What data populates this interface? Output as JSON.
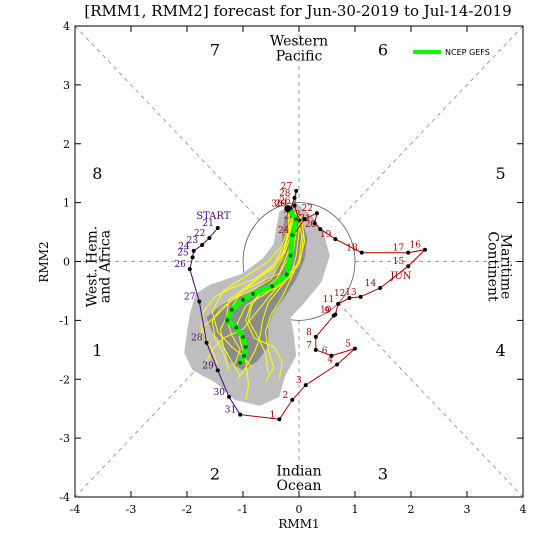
{
  "title": "[RMM1, RMM2] forecast for Jun-30-2019 to Jul-14-2019",
  "colors": {
    "may": "#4b0082",
    "jun": "#aa0000",
    "dots": "#000000",
    "ensemble": "#ffff00",
    "ensemble_outline": "#c8b400",
    "spread_outer": "#bebebe",
    "spread_inner": "#8c8c8c",
    "mean": "#00ff00",
    "mean_dots": "#006400"
  },
  "chart_data": {
    "type": "line",
    "title": "[RMM1, RMM2] forecast for Jun-30-2019 to Jul-14-2019",
    "xlabel": "RMM1",
    "ylabel": "RMM2",
    "xlim": [
      -4,
      4
    ],
    "ylim": [
      -4,
      4
    ],
    "xticks": [
      "-4",
      "-3",
      "-2",
      "-1",
      "0",
      "1",
      "2",
      "3",
      "4"
    ],
    "yticks": [
      "-4",
      "-3",
      "-2",
      "-1",
      "0",
      "1",
      "2",
      "3",
      "4"
    ],
    "grid": false,
    "unit_circle_radius": 1,
    "phases": [
      {
        "label": "1",
        "x": -3.6,
        "y": -1.5
      },
      {
        "label": "2",
        "x": -1.5,
        "y": -3.6
      },
      {
        "label": "3",
        "x": 1.5,
        "y": -3.6
      },
      {
        "label": "4",
        "x": 3.6,
        "y": -1.5
      },
      {
        "label": "5",
        "x": 3.6,
        "y": 1.5
      },
      {
        "label": "6",
        "x": 1.5,
        "y": 3.6
      },
      {
        "label": "7",
        "x": -1.5,
        "y": 3.6
      },
      {
        "label": "8",
        "x": -3.6,
        "y": 1.5
      }
    ],
    "regions": [
      {
        "label": "Western",
        "x": 0,
        "y": 3.75,
        "rotate": 0
      },
      {
        "label": "Pacific",
        "x": 0,
        "y": 3.5,
        "rotate": 0
      },
      {
        "label": "Indian",
        "x": 0,
        "y": -3.55,
        "rotate": 0
      },
      {
        "label": "Ocean",
        "x": 0,
        "y": -3.8,
        "rotate": 0
      },
      {
        "label": "West. Hem.",
        "x": -3.62,
        "y": 0,
        "rotate": -90
      },
      {
        "label": "and Africa",
        "x": -3.38,
        "y": 0,
        "rotate": -90
      },
      {
        "label": "Maritime",
        "x": 3.62,
        "y": 0,
        "rotate": 90
      },
      {
        "label": "Continent",
        "x": 3.38,
        "y": 0,
        "rotate": 90
      }
    ],
    "start_label": {
      "text": "START",
      "x": -1.53,
      "y": 0.72
    },
    "month_labels": [
      {
        "text": "JUN",
        "x": 1.82,
        "y": -0.3
      }
    ],
    "series": [
      {
        "name": "",
        "role": "observed-may",
        "points": [
          {
            "d": "21",
            "x": -1.45,
            "y": 0.57
          },
          {
            "d": "22",
            "x": -1.6,
            "y": 0.4
          },
          {
            "d": "23",
            "x": -1.73,
            "y": 0.28
          },
          {
            "d": "24",
            "x": -1.88,
            "y": 0.18
          },
          {
            "d": "25",
            "x": -1.9,
            "y": 0.07
          },
          {
            "d": "26",
            "x": -1.95,
            "y": -0.13
          },
          {
            "d": "27",
            "x": -1.78,
            "y": -0.68
          },
          {
            "d": "28",
            "x": -1.65,
            "y": -1.38
          },
          {
            "d": "29",
            "x": -1.45,
            "y": -1.85
          },
          {
            "d": "30",
            "x": -1.25,
            "y": -2.3
          },
          {
            "d": "31",
            "x": -1.05,
            "y": -2.6
          }
        ]
      },
      {
        "name": "",
        "role": "observed-jun",
        "points": [
          {
            "d": "1",
            "x": -0.35,
            "y": -2.68
          },
          {
            "d": "2",
            "x": -0.12,
            "y": -2.35
          },
          {
            "d": "3",
            "x": 0.12,
            "y": -2.1
          },
          {
            "d": "4",
            "x": 0.68,
            "y": -1.75
          },
          {
            "d": "5",
            "x": 1.0,
            "y": -1.48
          },
          {
            "d": "6",
            "x": 0.58,
            "y": -1.6
          },
          {
            "d": "7",
            "x": 0.3,
            "y": -1.5
          },
          {
            "d": "8",
            "x": 0.3,
            "y": -1.28
          },
          {
            "d": "9",
            "x": 0.62,
            "y": -0.92
          },
          {
            "d": "10",
            "x": 0.65,
            "y": -0.9
          },
          {
            "d": "11",
            "x": 0.7,
            "y": -0.72
          },
          {
            "d": "12",
            "x": 0.9,
            "y": -0.62
          },
          {
            "d": "13",
            "x": 1.1,
            "y": -0.6
          },
          {
            "d": "14",
            "x": 1.45,
            "y": -0.45
          },
          {
            "d": "15",
            "x": 1.95,
            "y": -0.08
          },
          {
            "d": "16",
            "x": 2.25,
            "y": 0.2
          },
          {
            "d": "17",
            "x": 1.95,
            "y": 0.15
          },
          {
            "d": "18",
            "x": 1.12,
            "y": 0.15
          },
          {
            "d": "19",
            "x": 0.65,
            "y": 0.38
          },
          {
            "d": "20",
            "x": 0.38,
            "y": 0.55
          },
          {
            "d": "21",
            "x": 0.28,
            "y": 0.65
          },
          {
            "d": "22",
            "x": 0.32,
            "y": 0.82
          },
          {
            "d": "23",
            "x": 0.1,
            "y": 0.72
          },
          {
            "d": "24",
            "x": -0.1,
            "y": 0.45
          },
          {
            "d": "25",
            "x": 0.0,
            "y": 0.7
          },
          {
            "d": "26",
            "x": -0.08,
            "y": 0.95
          },
          {
            "d": "27",
            "x": -0.05,
            "y": 1.2
          },
          {
            "d": "28",
            "x": -0.08,
            "y": 1.08
          },
          {
            "d": "29",
            "x": -0.15,
            "y": 0.9
          },
          {
            "d": "30",
            "x": -0.22,
            "y": 0.9
          }
        ]
      },
      {
        "name": "NCEP GEFS",
        "role": "ensemble-mean",
        "points": [
          {
            "x": -0.2,
            "y": 0.9
          },
          {
            "x": -0.05,
            "y": 0.72
          },
          {
            "x": -0.12,
            "y": 0.45
          },
          {
            "x": -0.15,
            "y": 0.1
          },
          {
            "x": -0.22,
            "y": -0.22
          },
          {
            "x": -0.48,
            "y": -0.42
          },
          {
            "x": -0.82,
            "y": -0.55
          },
          {
            "x": -1.0,
            "y": -0.65
          },
          {
            "x": -1.2,
            "y": -0.82
          },
          {
            "x": -1.28,
            "y": -1.0
          },
          {
            "x": -1.12,
            "y": -1.12
          },
          {
            "x": -1.0,
            "y": -1.28
          },
          {
            "x": -0.95,
            "y": -1.45
          },
          {
            "x": -0.98,
            "y": -1.6
          },
          {
            "x": -1.05,
            "y": -1.72
          }
        ]
      }
    ],
    "ensemble_members": [
      [
        [
          -0.2,
          0.9
        ],
        [
          -0.1,
          0.7
        ],
        [
          -0.2,
          0.4
        ],
        [
          -0.3,
          0.05
        ],
        [
          -0.5,
          -0.3
        ],
        [
          -0.85,
          -0.5
        ],
        [
          -1.1,
          -0.6
        ],
        [
          -1.4,
          -0.8
        ],
        [
          -1.55,
          -1.0
        ],
        [
          -1.5,
          -1.3
        ],
        [
          -1.35,
          -1.55
        ],
        [
          -1.25,
          -1.85
        ]
      ],
      [
        [
          -0.2,
          0.9
        ],
        [
          0.0,
          0.75
        ],
        [
          0.0,
          0.5
        ],
        [
          -0.05,
          0.1
        ],
        [
          -0.15,
          -0.25
        ],
        [
          -0.4,
          -0.45
        ],
        [
          -0.7,
          -0.55
        ],
        [
          -0.85,
          -0.75
        ],
        [
          -0.9,
          -1.0
        ],
        [
          -0.75,
          -1.25
        ],
        [
          -0.6,
          -1.55
        ],
        [
          -0.55,
          -1.9
        ]
      ],
      [
        [
          -0.2,
          0.9
        ],
        [
          -0.15,
          0.65
        ],
        [
          -0.25,
          0.3
        ],
        [
          -0.45,
          -0.05
        ],
        [
          -0.8,
          -0.3
        ],
        [
          -1.2,
          -0.45
        ],
        [
          -1.5,
          -0.6
        ],
        [
          -1.7,
          -0.85
        ],
        [
          -1.75,
          -1.1
        ],
        [
          -1.6,
          -1.4
        ],
        [
          -1.45,
          -1.75
        ]
      ],
      [
        [
          -0.2,
          0.9
        ],
        [
          -0.05,
          0.8
        ],
        [
          0.05,
          0.45
        ],
        [
          0.0,
          0.0
        ],
        [
          -0.25,
          -0.3
        ],
        [
          -0.6,
          -0.55
        ],
        [
          -0.95,
          -0.75
        ],
        [
          -1.1,
          -1.05
        ],
        [
          -1.05,
          -1.35
        ],
        [
          -0.95,
          -1.7
        ],
        [
          -0.9,
          -2.1
        ],
        [
          -0.95,
          -2.35
        ]
      ],
      [
        [
          -0.2,
          0.9
        ],
        [
          -0.1,
          0.72
        ],
        [
          -0.1,
          0.45
        ],
        [
          -0.2,
          0.15
        ],
        [
          -0.35,
          -0.2
        ],
        [
          -0.7,
          -0.35
        ],
        [
          -1.0,
          -0.5
        ],
        [
          -1.25,
          -0.7
        ],
        [
          -1.45,
          -0.9
        ],
        [
          -1.7,
          -1.1
        ],
        [
          -1.8,
          -1.35
        ]
      ],
      [
        [
          -0.2,
          0.9
        ],
        [
          0.05,
          0.7
        ],
        [
          0.1,
          0.35
        ],
        [
          0.0,
          -0.05
        ],
        [
          -0.3,
          -0.4
        ],
        [
          -0.55,
          -0.7
        ],
        [
          -0.65,
          -1.0
        ],
        [
          -0.7,
          -1.3
        ],
        [
          -0.8,
          -1.55
        ],
        [
          -0.95,
          -1.8
        ],
        [
          -1.1,
          -2.0
        ]
      ],
      [
        [
          -0.2,
          0.9
        ],
        [
          -0.12,
          0.68
        ],
        [
          -0.2,
          0.42
        ],
        [
          -0.3,
          0.12
        ],
        [
          -0.55,
          -0.15
        ],
        [
          -0.9,
          -0.4
        ],
        [
          -1.25,
          -0.65
        ],
        [
          -1.3,
          -0.95
        ],
        [
          -1.2,
          -1.25
        ],
        [
          -1.05,
          -1.5
        ],
        [
          -1.15,
          -1.75
        ]
      ],
      [
        [
          -0.2,
          0.9
        ],
        [
          -0.02,
          0.74
        ],
        [
          -0.05,
          0.5
        ],
        [
          -0.1,
          0.2
        ],
        [
          -0.2,
          -0.15
        ],
        [
          -0.45,
          -0.5
        ],
        [
          -0.75,
          -0.85
        ],
        [
          -1.0,
          -1.15
        ],
        [
          -1.35,
          -1.3
        ],
        [
          -1.55,
          -1.5
        ],
        [
          -1.65,
          -1.7
        ]
      ],
      [
        [
          -0.2,
          0.9
        ],
        [
          -0.08,
          0.7
        ],
        [
          -0.15,
          0.38
        ],
        [
          -0.2,
          0.05
        ],
        [
          -0.4,
          -0.3
        ],
        [
          -0.6,
          -0.45
        ],
        [
          -0.85,
          -0.7
        ],
        [
          -0.95,
          -1.0
        ],
        [
          -0.8,
          -1.3
        ],
        [
          -0.45,
          -1.45
        ],
        [
          -0.3,
          -1.7
        ],
        [
          -0.35,
          -2.0
        ]
      ],
      [
        [
          -0.2,
          0.9
        ],
        [
          -0.18,
          0.6
        ],
        [
          -0.3,
          0.28
        ],
        [
          -0.55,
          0.0
        ],
        [
          -0.95,
          -0.25
        ],
        [
          -1.35,
          -0.5
        ],
        [
          -1.55,
          -0.85
        ],
        [
          -1.45,
          -1.2
        ],
        [
          -1.2,
          -1.45
        ],
        [
          -1.0,
          -1.6
        ],
        [
          -0.85,
          -1.8
        ]
      ],
      [
        [
          -0.2,
          0.9
        ],
        [
          0.02,
          0.76
        ],
        [
          0.08,
          0.5
        ],
        [
          0.05,
          0.15
        ],
        [
          -0.1,
          -0.2
        ],
        [
          -0.3,
          -0.6
        ],
        [
          -0.5,
          -0.9
        ],
        [
          -0.6,
          -1.2
        ],
        [
          -0.55,
          -1.5
        ],
        [
          -0.45,
          -1.8
        ],
        [
          -0.6,
          -2.05
        ]
      ],
      [
        [
          -0.2,
          0.9
        ],
        [
          -0.1,
          0.7
        ],
        [
          -0.15,
          0.45
        ],
        [
          -0.25,
          0.15
        ],
        [
          -0.45,
          -0.1
        ],
        [
          -0.75,
          -0.3
        ],
        [
          -1.05,
          -0.55
        ],
        [
          -1.25,
          -0.85
        ],
        [
          -1.4,
          -1.15
        ],
        [
          -1.35,
          -1.45
        ],
        [
          -1.2,
          -1.7
        ],
        [
          -1.05,
          -1.95
        ]
      ]
    ],
    "spread_outer": [
      [
        -0.05,
        1.0
      ],
      [
        0.25,
        0.75
      ],
      [
        0.45,
        0.45
      ],
      [
        0.55,
        0.1
      ],
      [
        0.4,
        -0.35
      ],
      [
        0.05,
        -0.75
      ],
      [
        -0.15,
        -0.95
      ],
      [
        -0.1,
        -1.2
      ],
      [
        -0.05,
        -1.6
      ],
      [
        -0.25,
        -1.95
      ],
      [
        -0.35,
        -2.3
      ],
      [
        -0.7,
        -2.45
      ],
      [
        -1.15,
        -2.35
      ],
      [
        -1.5,
        -2.05
      ],
      [
        -1.9,
        -1.85
      ],
      [
        -2.05,
        -1.55
      ],
      [
        -2.0,
        -1.2
      ],
      [
        -1.95,
        -0.9
      ],
      [
        -1.85,
        -0.55
      ],
      [
        -1.6,
        -0.4
      ],
      [
        -1.3,
        -0.3
      ],
      [
        -1.0,
        -0.2
      ],
      [
        -0.65,
        0.05
      ],
      [
        -0.45,
        0.3
      ],
      [
        -0.4,
        0.6
      ],
      [
        -0.35,
        0.85
      ]
    ],
    "spread_inner": [
      [
        -0.1,
        0.85
      ],
      [
        0.05,
        0.7
      ],
      [
        0.15,
        0.4
      ],
      [
        0.1,
        0.05
      ],
      [
        -0.05,
        -0.3
      ],
      [
        -0.25,
        -0.6
      ],
      [
        -0.45,
        -0.85
      ],
      [
        -0.55,
        -1.1
      ],
      [
        -0.55,
        -1.45
      ],
      [
        -0.75,
        -1.7
      ],
      [
        -1.0,
        -1.85
      ],
      [
        -1.25,
        -1.7
      ],
      [
        -1.35,
        -1.4
      ],
      [
        -1.55,
        -1.2
      ],
      [
        -1.65,
        -0.95
      ],
      [
        -1.4,
        -0.75
      ],
      [
        -1.1,
        -0.6
      ],
      [
        -0.75,
        -0.45
      ],
      [
        -0.45,
        -0.2
      ],
      [
        -0.3,
        0.15
      ],
      [
        -0.3,
        0.5
      ],
      [
        -0.25,
        0.75
      ]
    ],
    "legend": {
      "label": "NCEP GEFS",
      "placement": "top-right"
    }
  }
}
